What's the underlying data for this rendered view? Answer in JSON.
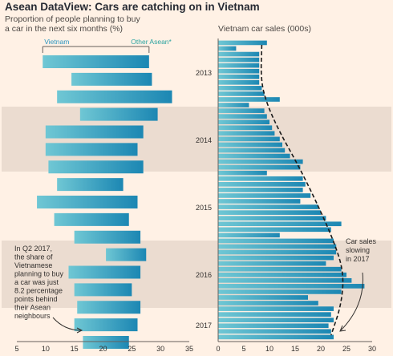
{
  "title": "Asean DataView: Cars are catching on in Vietnam",
  "colors": {
    "background": "#fff1e5",
    "band": "#ebdcd0",
    "bar_light": "#6fc7d4",
    "bar_dark": "#1c87b3",
    "text": "#33302e",
    "axis": "#66605c"
  },
  "chart_data": [
    {
      "type": "bar",
      "subtitle": [
        "Proportion of people planning to buy",
        "a car in the next six months (%)"
      ],
      "legend": [
        "Vietnam",
        "Other Asean*"
      ],
      "orientation": "horizontal-range",
      "xlim": [
        5,
        35
      ],
      "xticks": [
        5,
        10,
        15,
        20,
        25,
        30,
        35
      ],
      "year_labels": [
        "2013",
        "2014",
        "2015",
        "2016",
        "2017"
      ],
      "shaded_years": [
        "2014",
        "2016"
      ],
      "series": [
        {
          "name": "Vietnam",
          "values": [
            9.5,
            14.5,
            12,
            16,
            10,
            10,
            10.5,
            12,
            8.5,
            11.5,
            15,
            20.5,
            14,
            15,
            15.5,
            15,
            16.5
          ]
        },
        {
          "name": "Other Asean*",
          "values": [
            28,
            28.5,
            32,
            29.5,
            27,
            26,
            27,
            23.5,
            26,
            24.5,
            26.5,
            27.5,
            26.5,
            25,
            26.5,
            26,
            24.5
          ]
        }
      ],
      "annotation": [
        "In Q2 2017,",
        "the share of",
        "Vietnamese",
        "planning to buy",
        "a car was just",
        "8.2 percentage",
        "points behind",
        "their Asean",
        "neighbours"
      ]
    },
    {
      "type": "bar",
      "title": "Vietnam car sales (000s)",
      "orientation": "horizontal",
      "xlim": [
        0,
        30
      ],
      "xticks": [
        0,
        5,
        10,
        15,
        20,
        25,
        30
      ],
      "values": [
        9.5,
        3.5,
        8,
        8,
        8,
        8,
        8,
        8,
        8.5,
        9,
        12,
        6,
        9,
        9.5,
        10,
        10.5,
        11,
        12,
        12.5,
        13,
        14,
        16.5,
        16,
        9.5,
        16.5,
        17,
        16.5,
        18,
        16,
        19.5,
        20,
        21,
        24,
        22,
        12,
        22.5,
        23,
        23,
        22.5,
        21,
        24,
        25,
        26,
        28.5,
        24,
        17.5,
        19.5,
        22.5,
        22,
        22.5,
        21.5,
        22,
        22.5
      ],
      "annotation": [
        "Car sales",
        "slowing",
        "in 2017"
      ]
    }
  ]
}
